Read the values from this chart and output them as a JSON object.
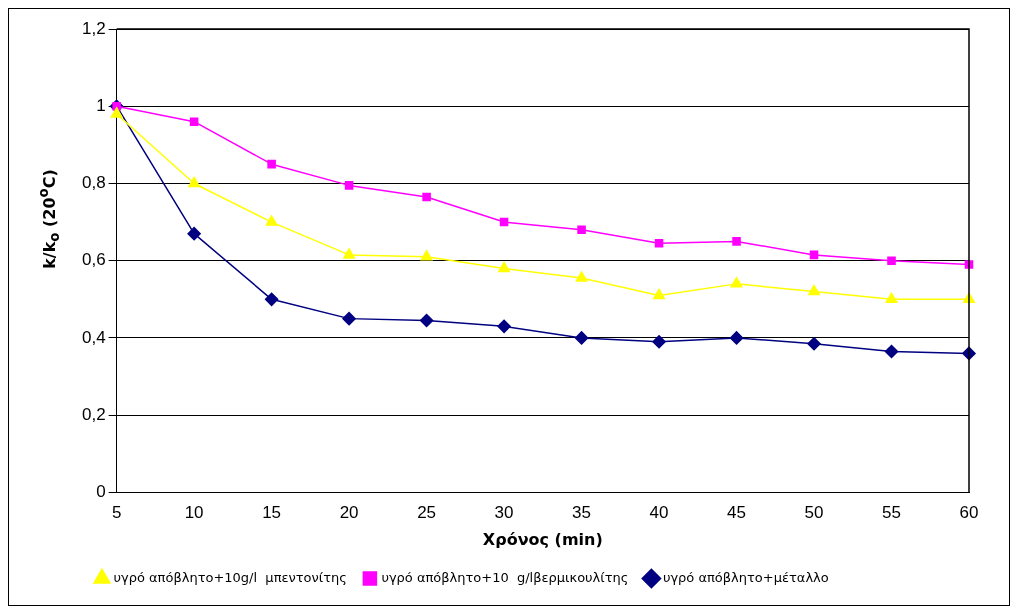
{
  "chart_data": {
    "type": "line",
    "xlabel": "Χρόνος (min)",
    "ylabel": "k/k$_{o}$ (20$^{o}$C)",
    "categories": [
      "5",
      "10",
      "15",
      "20",
      "25",
      "30",
      "35",
      "40",
      "45",
      "50",
      "55",
      "60"
    ],
    "series": [
      {
        "name": "υγρό απόβλητο+μέταλλο",
        "color": "#000080",
        "marker": "diamond",
        "values": [
          1,
          0.67,
          0.5,
          0.45,
          0.445,
          0.43,
          0.4,
          0.39,
          0.4,
          0.385,
          0.365,
          0.36
        ]
      },
      {
        "name": "υγρό απόβλητο+10  g/lβερμικουλίτης",
        "color": "#ff00ff",
        "marker": "square",
        "values": [
          1,
          0.96,
          0.85,
          0.795,
          0.765,
          0.7,
          0.68,
          0.645,
          0.65,
          0.615,
          0.6,
          0.59
        ]
      },
      {
        "name": "υγρό απόβλητο+10g/l  μπεντονίτης",
        "color": "#ffff00",
        "marker": "triangle",
        "values": [
          0.98,
          0.8,
          0.7,
          0.615,
          0.61,
          0.58,
          0.555,
          0.51,
          0.54,
          0.52,
          0.5,
          0.5
        ]
      }
    ],
    "ylim": [
      0,
      1.2
    ],
    "yticks": [
      {
        "value": 0,
        "label": "0"
      },
      {
        "value": 0.2,
        "label": "0,2"
      },
      {
        "value": 0.4,
        "label": "0,4"
      },
      {
        "value": 0.6,
        "label": "0,6"
      },
      {
        "value": 0.8,
        "label": "0,8"
      },
      {
        "value": 1,
        "label": "1"
      },
      {
        "value": 1.2,
        "label": "1,2"
      }
    ],
    "grid": "y",
    "legend": "bottom",
    "line_style": "solid"
  }
}
